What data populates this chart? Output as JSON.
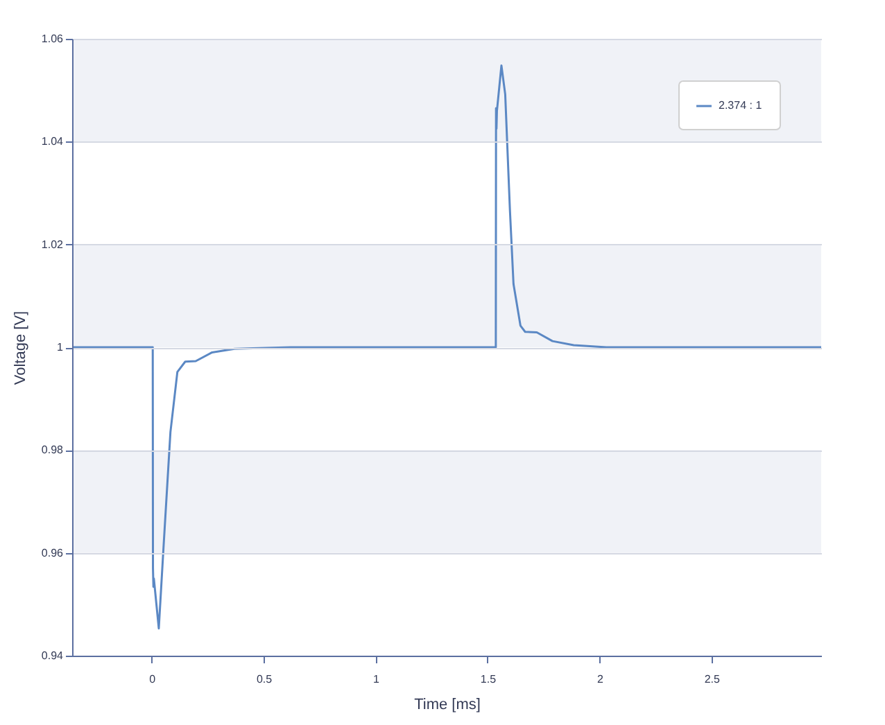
{
  "chart_data": {
    "type": "line",
    "xlabel": "Time [ms]",
    "ylabel": "Voltage [V]",
    "xlim": [
      -0.355,
      2.99
    ],
    "xticks": [
      0,
      0.5,
      1,
      1.5,
      2,
      2.5
    ],
    "ylim": [
      0.94,
      1.06
    ],
    "yticks": [
      0.94,
      0.96,
      0.98,
      1,
      1.02,
      1.04,
      1.06
    ],
    "grid": "y",
    "legend": "top right",
    "marker": "none",
    "line_style": "solid",
    "bands": [
      {
        "axis": "y",
        "from": 1.04,
        "to": 1.06,
        "color": "#f0f2f7"
      },
      {
        "axis": "y",
        "from": 1.0,
        "to": 1.02,
        "color": "#f0f2f7"
      },
      {
        "axis": "y",
        "from": 0.96,
        "to": 0.98,
        "color": "#f0f2f7"
      }
    ],
    "series": [
      {
        "name": "2.374 : 1",
        "color": "#5b88c4",
        "x": [
          -0.355,
          0.005,
          0.006,
          0.008,
          0.01,
          0.032,
          0.053,
          0.084,
          0.115,
          0.15,
          0.197,
          0.27,
          0.37,
          0.62,
          1.0,
          1.537,
          1.538,
          1.54,
          1.542,
          1.562,
          1.579,
          1.6,
          1.616,
          1.647,
          1.668,
          1.72,
          1.79,
          1.885,
          2.03,
          2.5,
          2.99
        ],
        "values": [
          1,
          1,
          0.957,
          0.9534,
          0.955,
          0.9453,
          0.961,
          0.9835,
          0.9952,
          0.9972,
          0.9973,
          0.999,
          0.9997,
          1,
          1,
          1,
          1.0465,
          1.0425,
          1.046,
          1.0548,
          1.0492,
          1.0267,
          1.0123,
          1.0042,
          1.003,
          1.0029,
          1.0012,
          1.0004,
          1,
          1,
          1
        ]
      }
    ]
  }
}
